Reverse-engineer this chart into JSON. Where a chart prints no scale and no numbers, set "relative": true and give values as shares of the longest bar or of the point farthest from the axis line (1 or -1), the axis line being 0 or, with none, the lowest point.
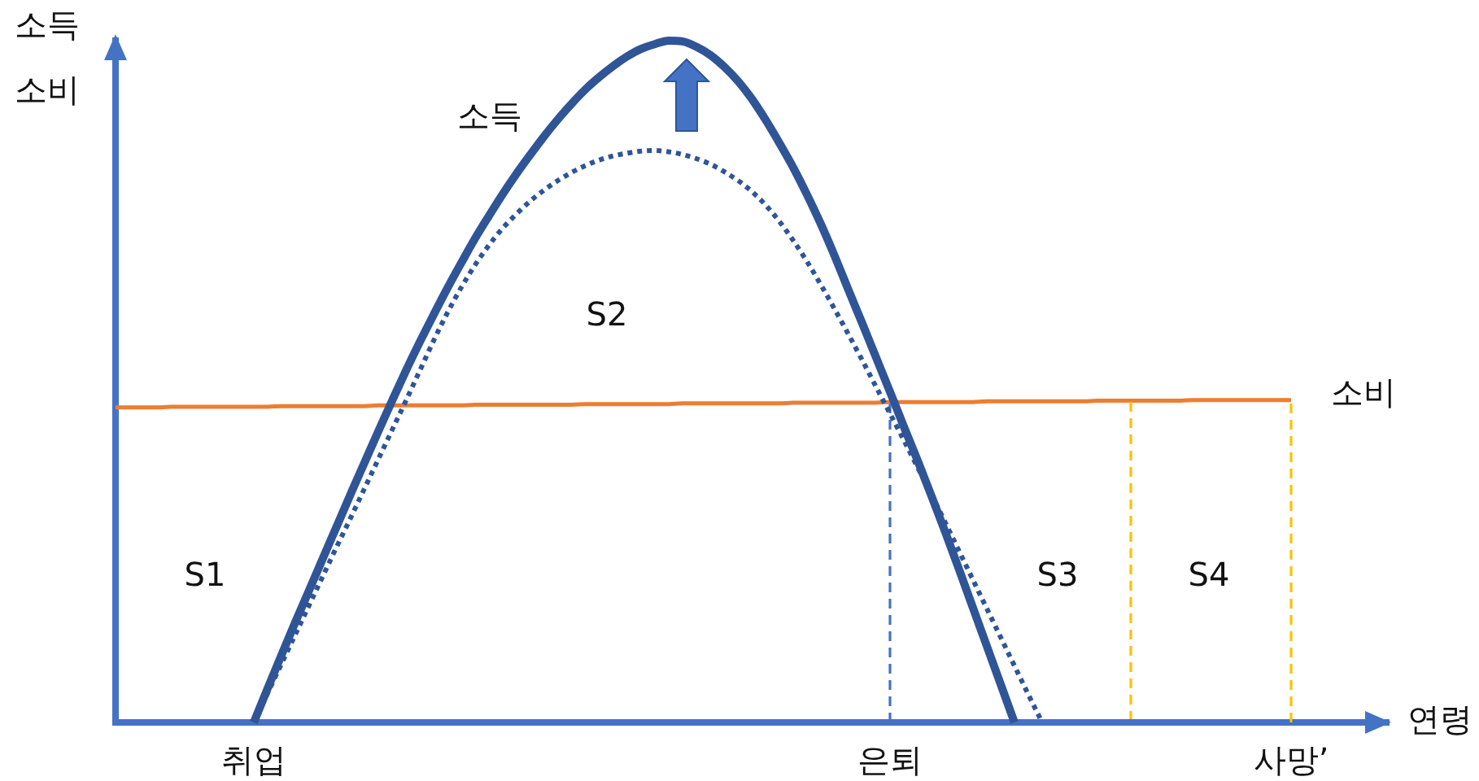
{
  "chart_data": {
    "type": "line",
    "relative": true,
    "ylabel": "소득\n소비",
    "xlabel": "연령",
    "categories": [
      null,
      null,
      null,
      null,
      null,
      null,
      null,
      null,
      null,
      null,
      "취업",
      null,
      null,
      null,
      null,
      null,
      null,
      null,
      null,
      null,
      null,
      null,
      null,
      null,
      null,
      null,
      null,
      null,
      null,
      null,
      null,
      null,
      null,
      null,
      null,
      null,
      null,
      null,
      null,
      null,
      null,
      null,
      null,
      null,
      null,
      null,
      null,
      null,
      null,
      null,
      null,
      null,
      null,
      null,
      null,
      null,
      "은퇴",
      null,
      null,
      null,
      null,
      null,
      null,
      null,
      null,
      null,
      null,
      null,
      null,
      null,
      null,
      null,
      null,
      null,
      null,
      null,
      null,
      null,
      null,
      null,
      null,
      null,
      null,
      null,
      null,
      "사망’",
      null,
      null,
      null,
      null,
      null,
      null,
      null
    ],
    "marker": "none",
    "series": [
      {
        "name": "소득",
        "color": "#2f5597",
        "line_style": "solid",
        "values": [
          null,
          null,
          null,
          null,
          null,
          null,
          null,
          null,
          null,
          null,
          0,
          0.05,
          0.099,
          0.147,
          0.194,
          0.241,
          0.288,
          0.335,
          0.381,
          0.427,
          0.472,
          0.516,
          0.558,
          0.598,
          0.637,
          0.674,
          0.71,
          0.743,
          0.775,
          0.805,
          0.833,
          0.86,
          0.885,
          0.908,
          0.929,
          0.947,
          0.963,
          0.977,
          0.988,
          0.995,
          1,
          0.999,
          0.991,
          0.979,
          0.962,
          0.941,
          0.915,
          0.884,
          0.85,
          0.814,
          0.774,
          0.731,
          0.684,
          0.634,
          0.585,
          0.535,
          0.485,
          0.434,
          0.384,
          0.332,
          0.279,
          0.224,
          0.168,
          0.112,
          0.056,
          0,
          null,
          null,
          null,
          null,
          null,
          null,
          null,
          null,
          null,
          null,
          null,
          null,
          null,
          null,
          null,
          null,
          null,
          null,
          null,
          null,
          null,
          null,
          null,
          null,
          null,
          null,
          null
        ]
      },
      {
        "color": "#2f5597",
        "line_style": "dotted",
        "values": [
          null,
          null,
          null,
          null,
          null,
          null,
          null,
          null,
          null,
          null,
          0,
          0.043,
          0.086,
          0.129,
          0.172,
          0.215,
          0.258,
          0.3,
          0.343,
          0.386,
          0.429,
          0.472,
          0.516,
          0.56,
          0.601,
          0.638,
          0.671,
          0.7,
          0.725,
          0.746,
          0.765,
          0.781,
          0.795,
          0.807,
          0.817,
          0.825,
          0.831,
          0.835,
          0.838,
          0.839,
          0.837,
          0.833,
          0.827,
          0.819,
          0.808,
          0.795,
          0.779,
          0.759,
          0.735,
          0.707,
          0.676,
          0.642,
          0.606,
          0.569,
          0.531,
          0.492,
          0.453,
          0.414,
          0.374,
          0.334,
          0.293,
          0.251,
          0.209,
          0.167,
          0.125,
          0.083,
          0.041,
          0,
          null,
          null,
          null,
          null,
          null,
          null,
          null,
          null,
          null,
          null,
          null,
          null,
          null,
          null,
          null,
          null,
          null,
          null,
          null,
          null,
          null,
          null,
          null,
          null,
          null
        ]
      },
      {
        "name": "소비",
        "color": "#ed7d31",
        "line_style": "solid",
        "values": [
          0.462,
          0.462,
          0.462,
          0.462,
          0.463,
          0.463,
          0.463,
          0.463,
          0.463,
          0.463,
          0.463,
          0.463,
          0.464,
          0.464,
          0.464,
          0.464,
          0.464,
          0.464,
          0.464,
          0.465,
          0.465,
          0.465,
          0.465,
          0.465,
          0.465,
          0.465,
          0.466,
          0.466,
          0.466,
          0.466,
          0.466,
          0.466,
          0.466,
          0.466,
          0.467,
          0.467,
          0.467,
          0.467,
          0.467,
          0.467,
          0.467,
          0.468,
          0.468,
          0.468,
          0.468,
          0.468,
          0.468,
          0.468,
          0.468,
          0.469,
          0.469,
          0.469,
          0.469,
          0.469,
          0.469,
          0.469,
          0.47,
          0.47,
          0.47,
          0.47,
          0.47,
          0.47,
          0.47,
          0.471,
          0.471,
          0.471,
          0.471,
          0.471,
          0.471,
          0.471,
          0.471,
          0.472,
          0.472,
          0.472,
          0.472,
          0.472,
          0.472,
          0.472,
          0.473,
          0.473,
          0.473,
          0.473,
          0.473,
          0.473,
          0.473,
          0.473,
          null,
          null,
          null,
          null,
          null,
          null,
          null
        ]
      }
    ],
    "ref_lines": [
      {
        "axis": "x",
        "value": "은퇴",
        "color": "#4472c4",
        "line_style": "dashed"
      },
      {
        "axis": "x",
        "value": "사망’",
        "color": "#ffc000",
        "line_style": "dashed"
      }
    ],
    "annotations": [
      "S1",
      "S2",
      "S3",
      "S4"
    ]
  }
}
